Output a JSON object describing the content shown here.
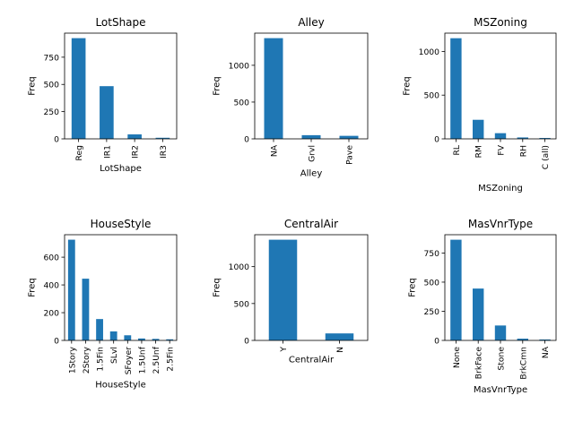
{
  "chart_data": [
    {
      "type": "bar",
      "title": "LotShape",
      "xlabel": "LotShape",
      "ylabel": "Freq",
      "categories": [
        "Reg",
        "IR1",
        "IR2",
        "IR3"
      ],
      "values": [
        925,
        484,
        41,
        10
      ],
      "yticks": [
        0,
        250,
        500,
        750
      ],
      "ylim": [
        0,
        971
      ],
      "color": "#1f77b4"
    },
    {
      "type": "bar",
      "title": "Alley",
      "xlabel": "Alley",
      "ylabel": "Freq",
      "categories": [
        "NA",
        "Grvl",
        "Pave"
      ],
      "values": [
        1369,
        50,
        41
      ],
      "yticks": [
        0,
        500,
        1000
      ],
      "ylim": [
        0,
        1437
      ],
      "color": "#1f77b4"
    },
    {
      "type": "bar",
      "title": "MSZoning",
      "xlabel": "MSZoning",
      "ylabel": "Freq",
      "categories": [
        "RL",
        "RM",
        "FV",
        "RH",
        "C (all)"
      ],
      "values": [
        1151,
        218,
        65,
        16,
        10
      ],
      "yticks": [
        0,
        500,
        1000
      ],
      "ylim": [
        0,
        1209
      ],
      "color": "#1f77b4"
    },
    {
      "type": "bar",
      "title": "HouseStyle",
      "xlabel": "HouseStyle",
      "ylabel": "Freq",
      "categories": [
        "1Story",
        "2Story",
        "1.5Fin",
        "SLvl",
        "SFoyer",
        "1.5Unf",
        "2.5Unf",
        "2.5Fin"
      ],
      "values": [
        726,
        445,
        154,
        65,
        37,
        14,
        11,
        8
      ],
      "yticks": [
        0,
        200,
        400,
        600
      ],
      "ylim": [
        0,
        762
      ],
      "color": "#1f77b4"
    },
    {
      "type": "bar",
      "title": "CentralAir",
      "xlabel": "CentralAir",
      "ylabel": "Freq",
      "categories": [
        "Y",
        "N"
      ],
      "values": [
        1365,
        95
      ],
      "yticks": [
        0,
        500,
        1000
      ],
      "ylim": [
        0,
        1433
      ],
      "color": "#1f77b4"
    },
    {
      "type": "bar",
      "title": "MasVnrType",
      "xlabel": "MasVnrType",
      "ylabel": "Freq",
      "categories": [
        "None",
        "BrkFace",
        "Stone",
        "BrkCmn",
        "NA"
      ],
      "values": [
        864,
        445,
        128,
        15,
        8
      ],
      "yticks": [
        0,
        250,
        500,
        750
      ],
      "ylim": [
        0,
        907
      ],
      "color": "#1f77b4"
    }
  ]
}
